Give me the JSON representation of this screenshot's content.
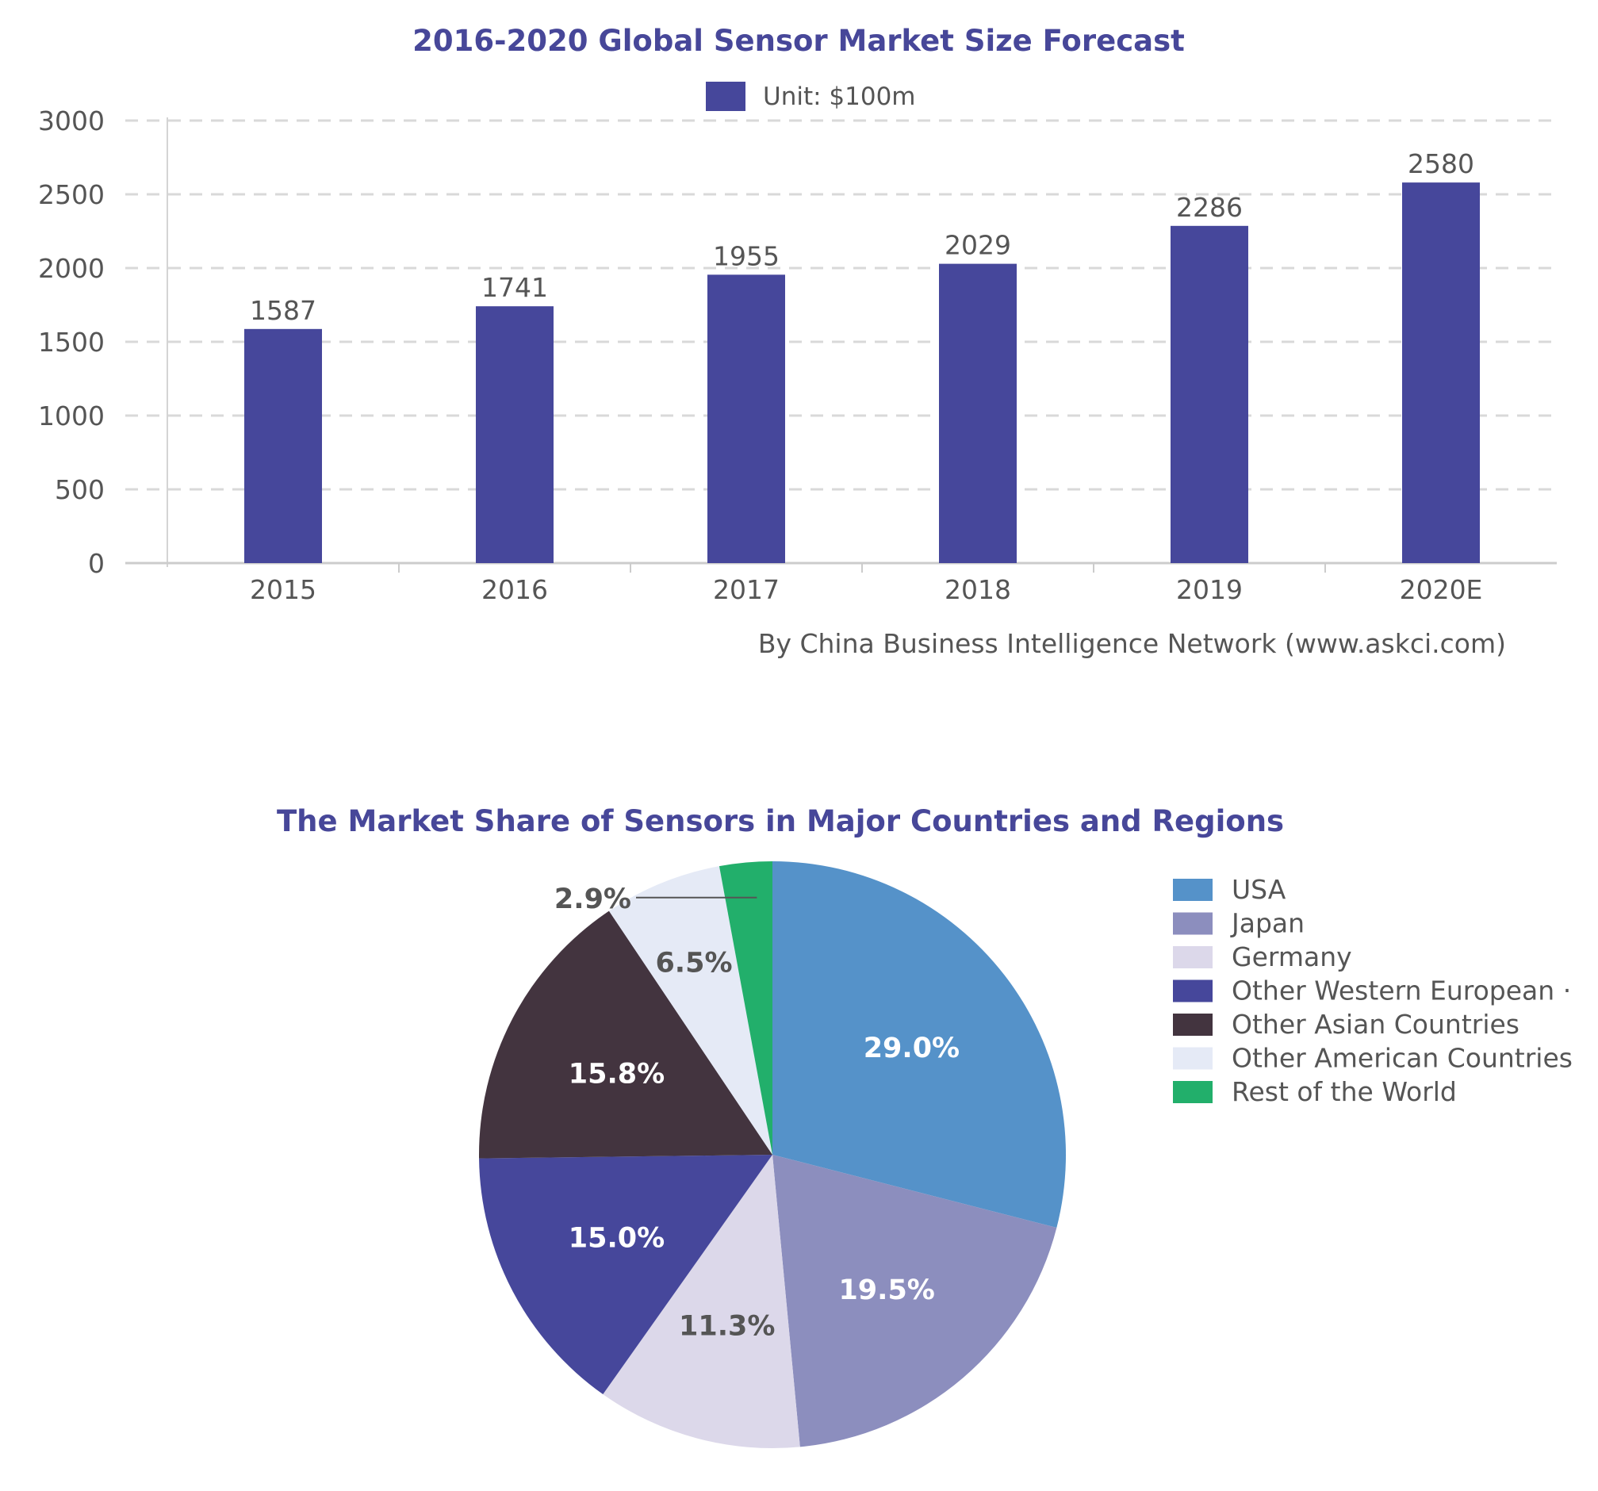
{
  "chart_data": [
    {
      "type": "bar",
      "title": "2016-2020 Global Sensor Market Size Forecast",
      "legend": {
        "label": "Unit: $100m",
        "position": "top"
      },
      "categories": [
        "2015",
        "2016",
        "2017",
        "2018",
        "2019",
        "2020E"
      ],
      "series": [
        {
          "values": [
            1587,
            1741,
            1955,
            2029,
            2286,
            2580
          ]
        }
      ],
      "data_labels": [
        "1587",
        "1741",
        "1955",
        "2029",
        "2286",
        "2580"
      ],
      "ylim": [
        0,
        3000
      ],
      "yticks": [
        0,
        500,
        1000,
        1500,
        2000,
        2500,
        3000
      ],
      "grid": true,
      "color": "#46479B",
      "source": "By China Business Intelligence Network (www.askci.com)"
    },
    {
      "type": "pie",
      "title": "The Market Share of Sensors in Major Countries and Regions",
      "legend_position": "right",
      "slices": [
        {
          "label": "USA",
          "value": 29.0,
          "text": "29.0%",
          "color": "#5592C9"
        },
        {
          "label": "Japan",
          "value": 19.5,
          "text": "19.5%",
          "color": "#8C8EBE"
        },
        {
          "label": "Germany",
          "value": 11.3,
          "text": "11.3%",
          "color": "#DCD8EA"
        },
        {
          "label": "Other Western European ·",
          "value": 15.0,
          "text": "15.0%",
          "color": "#46479B"
        },
        {
          "label": "Other Asian Countries",
          "value": 15.8,
          "text": "15.8%",
          "color": "#43343F"
        },
        {
          "label": "Other American Countries",
          "value": 6.5,
          "text": "6.5%",
          "color": "#E5EAF6"
        },
        {
          "label": "Rest of the World",
          "value": 2.9,
          "text": "2.9%",
          "color": "#22AF6B"
        }
      ]
    }
  ]
}
